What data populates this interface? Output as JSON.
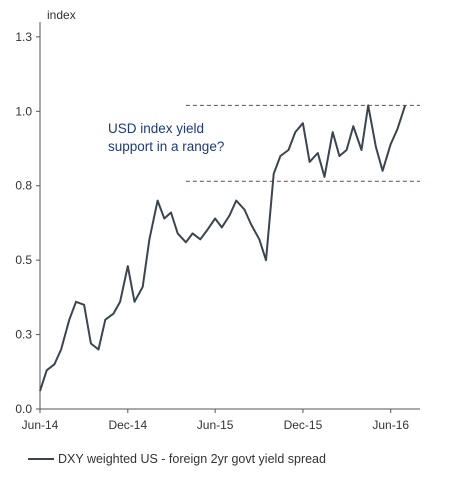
{
  "chart_data": {
    "type": "line",
    "ylabel": "index",
    "ylim": [
      0.0,
      1.3
    ],
    "y_ticks": [
      "0.0",
      "0.3",
      "0.5",
      "0.8",
      "1.0",
      "1.3"
    ],
    "y_tick_values": [
      0.0,
      0.25,
      0.5,
      0.75,
      1.0,
      1.25
    ],
    "x_ticks": [
      "Jun-14",
      "Dec-14",
      "Jun-15",
      "Dec-15",
      "Jun-16"
    ],
    "x_tick_values": [
      "2014-06",
      "2014-12",
      "2015-06",
      "2015-12",
      "2016-06"
    ],
    "xlim": [
      "2014-06",
      "2016-08"
    ],
    "grid": false,
    "annotation": "USD index yield\nsupport in a range?",
    "range_lines": {
      "upper": 1.02,
      "lower": 0.765,
      "color": "#a0304a",
      "start": "2015-04"
    },
    "series": [
      {
        "name": "DXY weighted US - foreign 2yr govt yield spread",
        "color": "#3a4550",
        "x": [
          "2014-06-01",
          "2014-06-15",
          "2014-07-01",
          "2014-07-15",
          "2014-08-01",
          "2014-08-15",
          "2014-09-01",
          "2014-09-15",
          "2014-10-01",
          "2014-10-15",
          "2014-11-01",
          "2014-11-15",
          "2014-12-01",
          "2014-12-15",
          "2015-01-01",
          "2015-01-15",
          "2015-02-01",
          "2015-02-15",
          "2015-03-01",
          "2015-03-15",
          "2015-04-01",
          "2015-04-15",
          "2015-05-01",
          "2015-05-15",
          "2015-06-01",
          "2015-06-15",
          "2015-07-01",
          "2015-07-15",
          "2015-08-01",
          "2015-08-15",
          "2015-09-01",
          "2015-09-15",
          "2015-10-01",
          "2015-10-15",
          "2015-11-01",
          "2015-11-15",
          "2015-12-01",
          "2015-12-15",
          "2016-01-01",
          "2016-01-15",
          "2016-02-01",
          "2016-02-15",
          "2016-03-01",
          "2016-03-15",
          "2016-04-01",
          "2016-04-15",
          "2016-05-01",
          "2016-05-15",
          "2016-06-01",
          "2016-06-15",
          "2016-07-01"
        ],
        "values": [
          0.06,
          0.13,
          0.15,
          0.2,
          0.3,
          0.36,
          0.35,
          0.22,
          0.2,
          0.3,
          0.32,
          0.36,
          0.48,
          0.36,
          0.41,
          0.57,
          0.7,
          0.64,
          0.66,
          0.59,
          0.56,
          0.59,
          0.57,
          0.6,
          0.64,
          0.61,
          0.65,
          0.7,
          0.67,
          0.62,
          0.57,
          0.5,
          0.79,
          0.85,
          0.87,
          0.93,
          0.96,
          0.83,
          0.86,
          0.78,
          0.93,
          0.85,
          0.87,
          0.95,
          0.87,
          1.02,
          0.88,
          0.8,
          0.89,
          0.94,
          1.02
        ]
      }
    ]
  }
}
